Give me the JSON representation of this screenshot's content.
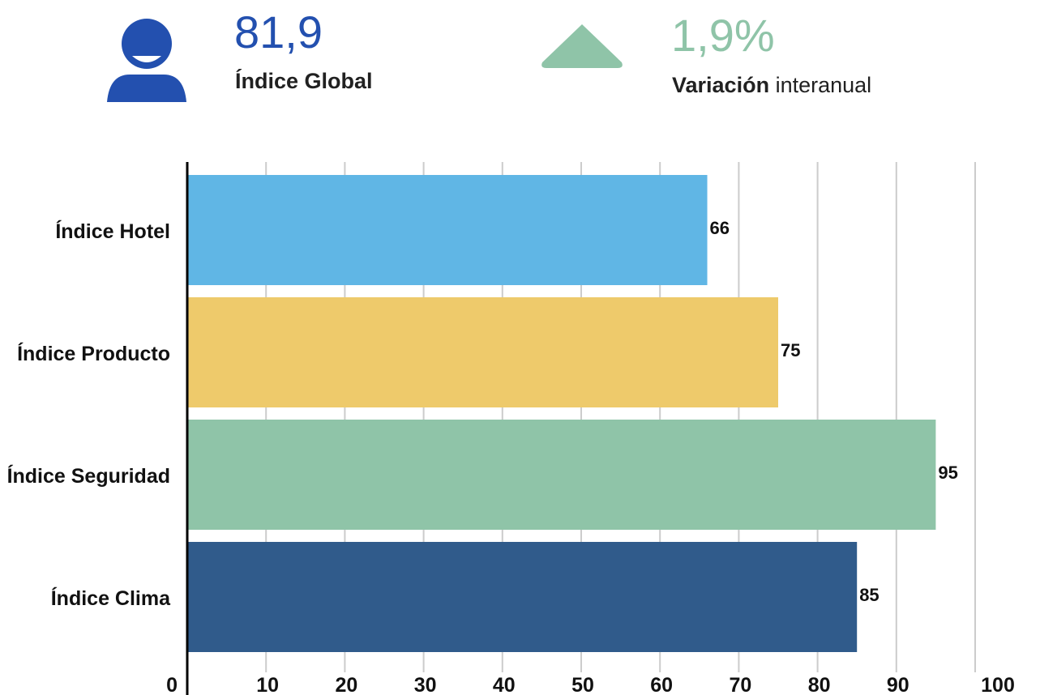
{
  "kpis": {
    "global": {
      "value": "81,9",
      "label": "Índice Global",
      "icon": "user-icon",
      "color": "#2350AF"
    },
    "variation": {
      "value": "1,9%",
      "label_strong": "Variación",
      "label_light": "interanual",
      "icon": "triangle-up-icon",
      "color": "#8FC4A8"
    }
  },
  "chart_data": {
    "type": "bar",
    "orientation": "horizontal",
    "categories": [
      "Índice Hotel",
      "Índice Producto",
      "Índice Seguridad",
      "Índice Clima"
    ],
    "values": [
      66,
      75,
      95,
      85
    ],
    "data_labels": [
      "66",
      "75",
      "95",
      "85"
    ],
    "colors": [
      "#60B6E5",
      "#EECA6B",
      "#8FC4A8",
      "#305B8B"
    ],
    "xlim": [
      0,
      100
    ],
    "xticks": [
      0,
      10,
      20,
      30,
      40,
      50,
      60,
      70,
      80,
      90,
      100
    ],
    "grid": true,
    "title": "",
    "xlabel": "",
    "ylabel": ""
  }
}
